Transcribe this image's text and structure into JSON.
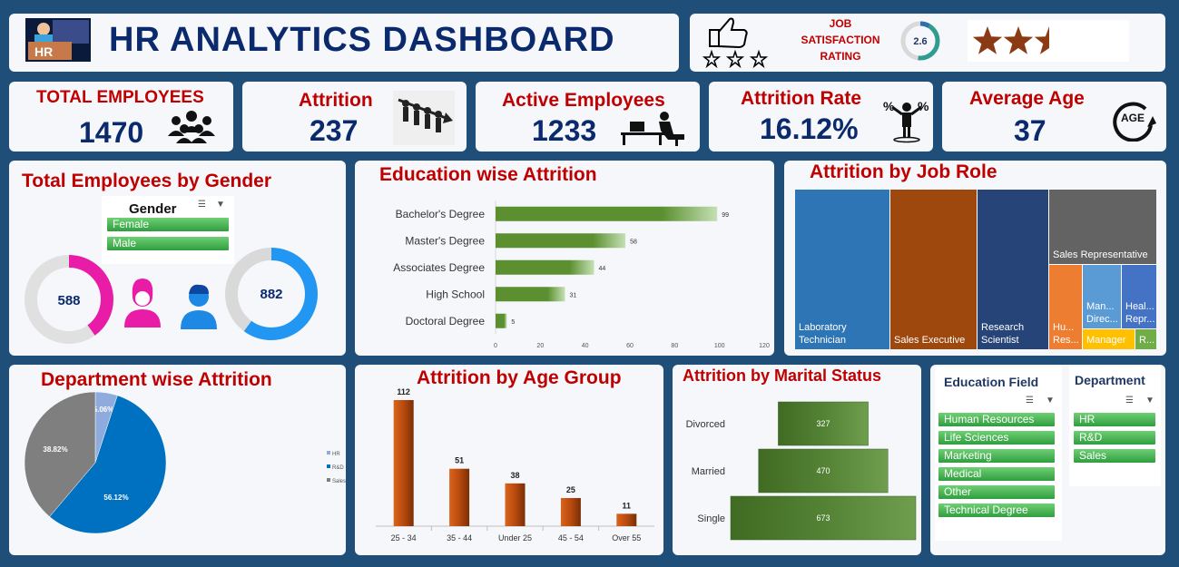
{
  "header": {
    "title": "HR ANALYTICS DASHBOARD",
    "logo_text": "HR",
    "job_satisfaction_label": "JOB SATISFACTION RATING",
    "job_satisfaction_value": "2.6",
    "stars_filled": 2.5
  },
  "kpis": {
    "total_employees": {
      "label": "TOTAL EMPLOYEES",
      "value": "1470",
      "icon": "people-group-icon"
    },
    "attrition": {
      "label": "Attrition",
      "value": "237",
      "icon": "people-leaving-icon"
    },
    "active_employees": {
      "label": "Active Employees",
      "value": "1233",
      "icon": "person-at-desk-icon"
    },
    "attrition_rate": {
      "label": "Attrition Rate",
      "value": "16.12%",
      "icon": "percent-person-icon"
    },
    "average_age": {
      "label": "Average Age",
      "value": "37",
      "icon": "age-icon"
    }
  },
  "gender_panel": {
    "title": "Total Employees by Gender",
    "slicer_header": "Gender",
    "slicer_items": [
      "Female",
      "Male"
    ],
    "female_value": "588",
    "male_value": "882",
    "female_fraction": 0.4,
    "male_fraction": 0.6
  },
  "colors": {
    "female": "#e81ca7",
    "male": "#2196f3",
    "bar_green": "#5b8f30",
    "bar_orange": "#b84a0e",
    "funnel_green": "#548235",
    "pie_hr": "#8faadc",
    "pie_rd": "#0070c0",
    "pie_sales": "#7f7f7f"
  },
  "education_chart": {
    "title": "Education wise Attrition",
    "chart_data": {
      "type": "bar",
      "orientation": "horizontal",
      "categories": [
        "Bachelor's Degree",
        "Master's Degree",
        "Associates Degree",
        "High School",
        "Doctoral Degree"
      ],
      "values": [
        99,
        58,
        44,
        31,
        5
      ],
      "value_labels": [
        "99",
        "58",
        "44",
        "31",
        "5"
      ],
      "xlim": [
        0,
        120
      ],
      "xticks": [
        "0",
        "20",
        "40",
        "60",
        "80",
        "100",
        "120"
      ]
    }
  },
  "job_role_chart": {
    "title": "Attrition by Job Role",
    "chart_data": {
      "type": "treemap",
      "labels": [
        "Laboratory Technician",
        "Sales Executive",
        "Research Scientist",
        "Sales Representative",
        "Hu... Res...",
        "Man... Direc...",
        "Heal... Repr...",
        "Manager",
        "R..."
      ]
    }
  },
  "department_chart": {
    "title": "Department wise Attrition",
    "chart_data": {
      "type": "pie",
      "labels": [
        "HR",
        "R&D",
        "Sales"
      ],
      "legend_labels": [
        "HR",
        "R&D",
        "Sales"
      ],
      "values": [
        5.06,
        56.12,
        38.82
      ],
      "value_labels": [
        "5.06%",
        "56.12%",
        "38.82%"
      ]
    }
  },
  "age_chart": {
    "title": "Attrition by Age Group",
    "chart_data": {
      "type": "bar",
      "categories": [
        "25 - 34",
        "35 - 44",
        "Under 25",
        "45 - 54",
        "Over 55"
      ],
      "values": [
        112,
        51,
        38,
        25,
        11
      ],
      "value_labels": [
        "112",
        "51",
        "38",
        "25",
        "11"
      ]
    }
  },
  "marital_chart": {
    "title": "Attrition by Marital Status",
    "chart_data": {
      "type": "funnel",
      "categories": [
        "Divorced",
        "Married",
        "Single"
      ],
      "values": [
        327,
        470,
        673
      ],
      "value_labels": [
        "327",
        "470",
        "673"
      ]
    }
  },
  "slicers": {
    "education_field": {
      "header": "Education Field",
      "items": [
        "Human Resources",
        "Life Sciences",
        "Marketing",
        "Medical",
        "Other",
        "Technical Degree"
      ]
    },
    "department": {
      "header": "Department",
      "items": [
        "HR",
        "R&D",
        "Sales"
      ]
    }
  }
}
